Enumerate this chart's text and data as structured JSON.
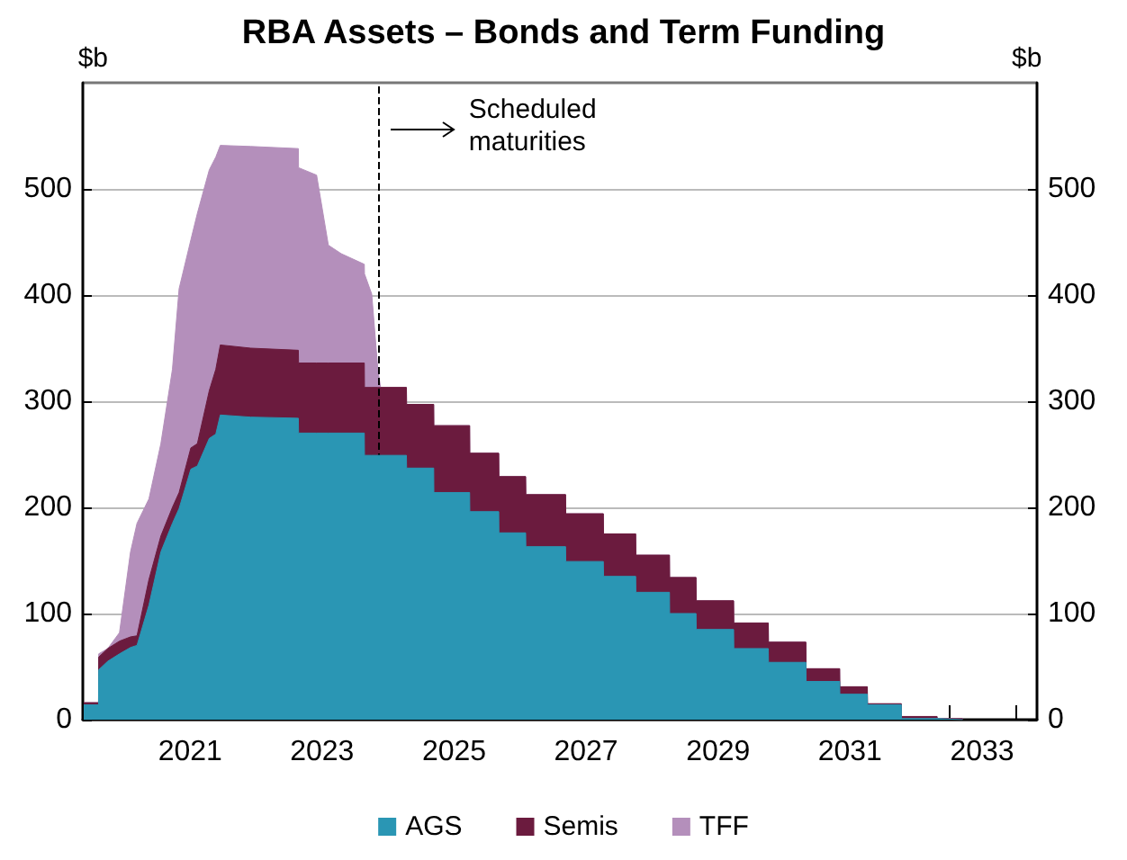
{
  "chart_data": {
    "type": "area",
    "title": "RBA Assets – Bonds and Term Funding",
    "ylabel": "$b",
    "y2label": "$b",
    "stacked": true,
    "grid": "y",
    "legend": "bottom",
    "marker": "none",
    "xlim": [
      "2019-11-15",
      "2034-05-01"
    ],
    "xticks": [
      {
        "value": "2021-07-01",
        "label": "2021"
      },
      {
        "value": "2023-07-01",
        "label": "2023"
      },
      {
        "value": "2025-07-01",
        "label": "2025"
      },
      {
        "value": "2027-07-01",
        "label": "2027"
      },
      {
        "value": "2029-07-01",
        "label": "2029"
      },
      {
        "value": "2031-07-01",
        "label": "2031"
      },
      {
        "value": "2033-07-01",
        "label": "2033"
      },
      {
        "value": "2033-01-01",
        "label": null
      },
      {
        "value": "2034-01-01",
        "label": null
      }
    ],
    "ylim": [
      0,
      600
    ],
    "yticks": [
      0,
      100,
      200,
      300,
      400,
      500
    ],
    "y2lim": [
      0,
      600
    ],
    "y2ticks": [
      0,
      100,
      200,
      300,
      400,
      500
    ],
    "x": [
      "2019-11-20",
      "2020-02-10",
      "2020-02-11",
      "2020-04-01",
      "2020-06-05",
      "2020-08-05",
      "2020-09-10",
      "2020-11-15",
      "2021-01-20",
      "2021-03-25",
      "2021-05-01",
      "2021-07-05",
      "2021-08-10",
      "2021-10-15",
      "2021-11-20",
      "2021-12-15",
      "2022-06-01",
      "2023-02-20",
      "2023-02-21",
      "2023-06-01",
      "2023-08-05",
      "2023-10-15",
      "2024-02-20",
      "2024-02-21",
      "2024-04-01",
      "2024-05-05",
      "2024-05-20",
      "2024-10-10",
      "2024-10-11",
      "2025-03-10",
      "2025-03-11",
      "2025-09-25",
      "2025-09-26",
      "2026-03-05",
      "2026-03-06",
      "2026-08-01",
      "2026-08-02",
      "2027-03-10",
      "2027-03-11",
      "2027-10-05",
      "2027-10-06",
      "2028-04-01",
      "2028-04-02",
      "2028-10-05",
      "2028-10-06",
      "2029-03-01",
      "2029-03-02",
      "2029-09-25",
      "2029-09-26",
      "2030-04-05",
      "2030-04-06",
      "2030-10-30",
      "2030-10-31",
      "2031-05-05",
      "2031-05-06",
      "2031-10-05",
      "2031-10-06",
      "2032-04-10",
      "2032-04-11",
      "2032-10-25",
      "2032-10-26",
      "2033-03-15",
      "2033-03-16"
    ],
    "series": [
      {
        "name": "AGS",
        "color": "#2a96b4",
        "values": [
          14,
          14,
          47,
          55,
          62,
          68,
          70,
          108,
          158,
          185,
          199,
          236,
          239,
          265,
          269,
          287,
          285,
          284,
          270,
          270,
          270,
          270,
          270,
          249,
          249,
          249,
          249,
          249,
          237,
          237,
          214,
          214,
          196,
          196,
          176,
          176,
          163,
          163,
          149,
          149,
          135,
          135,
          120,
          120,
          100,
          100,
          85,
          85,
          67,
          67,
          54,
          54,
          36,
          36,
          24,
          24,
          14,
          14,
          1,
          1,
          0,
          0,
          0
        ]
      },
      {
        "name": "Semis",
        "color": "#6b1b3e",
        "values": [
          2,
          2,
          12,
          12,
          12,
          10,
          9,
          24,
          15,
          15,
          15,
          20,
          21,
          45,
          61,
          66,
          65,
          64,
          66,
          66,
          66,
          66,
          66,
          64,
          64,
          64,
          64,
          64,
          60,
          60,
          63,
          63,
          55,
          55,
          53,
          53,
          49,
          49,
          45,
          45,
          40,
          40,
          35,
          35,
          34,
          34,
          27,
          27,
          24,
          24,
          19,
          19,
          12,
          12,
          7,
          7,
          1,
          1,
          2,
          2,
          1,
          1,
          0
        ]
      },
      {
        "name": "TFF",
        "color": "#b48fbb",
        "values": [
          0,
          0,
          3,
          0,
          8,
          80,
          106,
          76,
          87,
          130,
          192,
          196,
          217,
          208,
          200,
          188,
          190,
          190,
          184,
          177,
          111,
          103,
          93,
          107,
          88,
          17,
          0,
          0,
          0,
          0,
          0,
          0,
          0,
          0,
          0,
          0,
          0,
          0,
          0,
          0,
          0,
          0,
          0,
          0,
          0,
          0,
          0,
          0,
          0,
          0,
          0,
          0,
          0,
          0,
          0,
          0,
          0,
          0,
          0,
          0,
          0,
          0,
          0
        ]
      }
    ],
    "ref_lines": [
      {
        "axis": "x",
        "value": "2024-05-10",
        "line_style": "dashed",
        "color": "#000000"
      }
    ],
    "annotations": [
      "Scheduled\nmaturities"
    ]
  }
}
